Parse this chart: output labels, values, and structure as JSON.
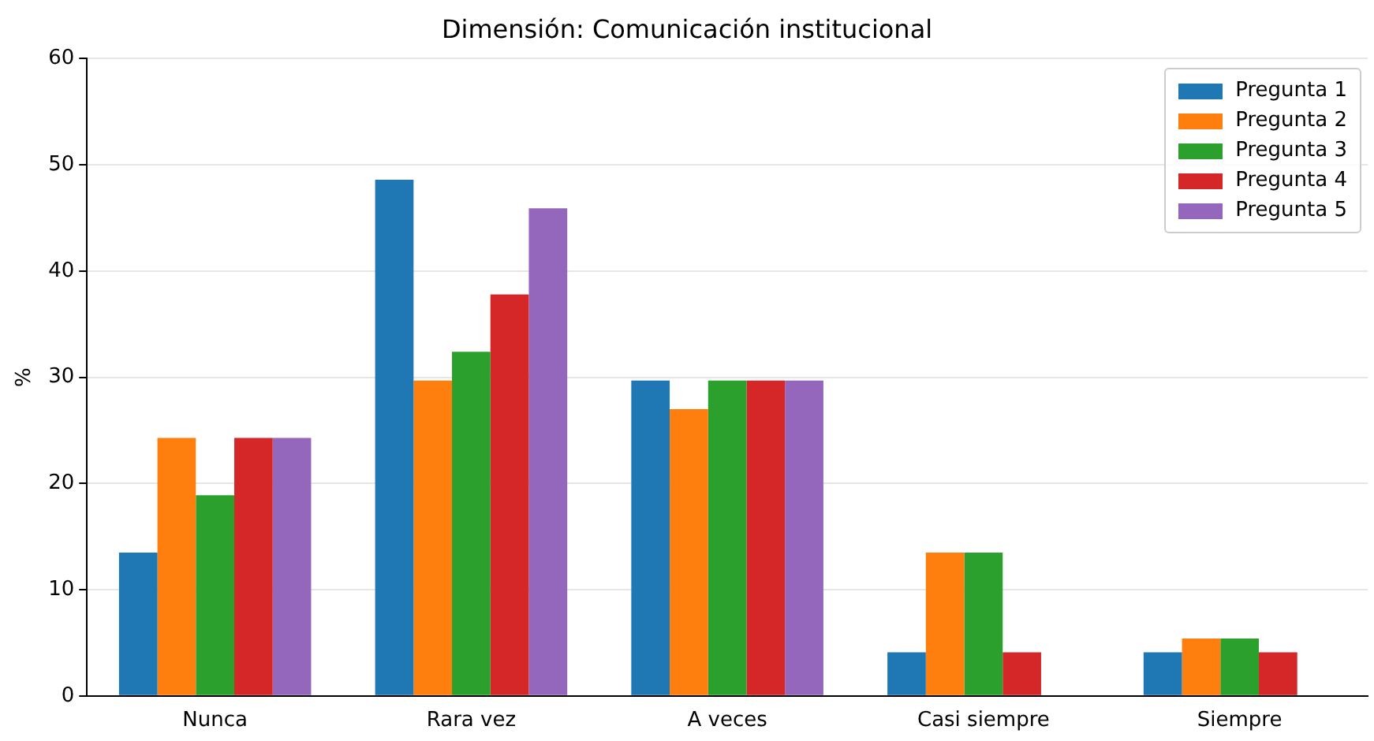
{
  "chart_data": {
    "type": "bar",
    "title": "Dimensión: Comunicación institucional",
    "ylabel": "%",
    "categories": [
      "Nunca",
      "Rara vez",
      "A veces",
      "Casi siempre",
      "Siempre"
    ],
    "series": [
      {
        "name": "Pregunta 1",
        "color": "#1f77b4",
        "values": [
          13.5,
          48.6,
          29.7,
          4.1,
          4.1
        ]
      },
      {
        "name": "Pregunta 2",
        "color": "#ff7f0e",
        "values": [
          24.3,
          29.7,
          27.0,
          13.5,
          5.4
        ]
      },
      {
        "name": "Pregunta 3",
        "color": "#2ca02c",
        "values": [
          18.9,
          32.4,
          29.7,
          13.5,
          5.4
        ]
      },
      {
        "name": "Pregunta 4",
        "color": "#d62728",
        "values": [
          24.3,
          37.8,
          29.7,
          4.1,
          4.1
        ]
      },
      {
        "name": "Pregunta 5",
        "color": "#9467bd",
        "values": [
          24.3,
          45.9,
          29.7,
          0,
          0
        ]
      }
    ],
    "ylim": [
      0,
      60
    ],
    "yticks": [
      0,
      10,
      20,
      30,
      40,
      50,
      60
    ],
    "grid": "y",
    "legend": "top right"
  }
}
